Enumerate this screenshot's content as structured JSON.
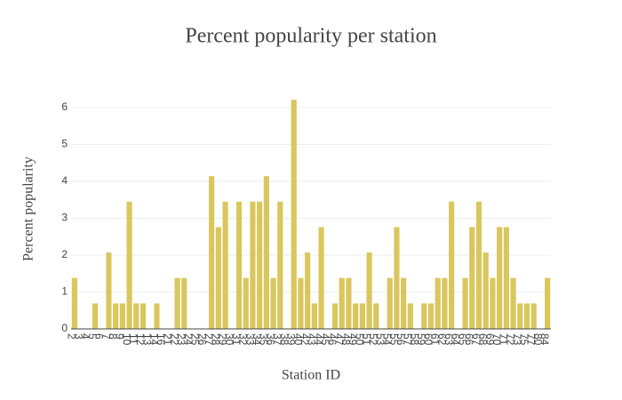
{
  "chart_data": {
    "type": "bar",
    "title": "Percent popularity per station",
    "x_label": "Station ID",
    "y_label": "Percent popularity",
    "categories": [
      "2",
      "3",
      "4",
      "5",
      "6",
      "7",
      "8",
      "9",
      "10",
      "11",
      "12",
      "13",
      "14",
      "16",
      "21",
      "22",
      "23",
      "24",
      "25",
      "26",
      "27",
      "28",
      "29",
      "30",
      "31",
      "32",
      "33",
      "34",
      "35",
      "36",
      "37",
      "38",
      "39",
      "40",
      "42",
      "43",
      "44",
      "45",
      "46",
      "47",
      "48",
      "49",
      "50",
      "51",
      "52",
      "53",
      "54",
      "55",
      "56",
      "57",
      "58",
      "59",
      "60",
      "61",
      "62",
      "63",
      "64",
      "65",
      "66",
      "67",
      "68",
      "69",
      "70",
      "71",
      "72",
      "73",
      "75",
      "77",
      "80",
      "84"
    ],
    "values": [
      1.38,
      0,
      0,
      0.69,
      0,
      2.07,
      0.69,
      0.69,
      3.45,
      0.69,
      0.69,
      0,
      0.69,
      0,
      0,
      1.38,
      1.38,
      0,
      0,
      0,
      4.14,
      2.76,
      3.45,
      0,
      3.45,
      1.38,
      3.45,
      3.45,
      4.14,
      1.38,
      3.45,
      0,
      6.21,
      1.38,
      2.07,
      0.69,
      2.76,
      0,
      0.69,
      1.38,
      1.38,
      0.69,
      0.69,
      2.07,
      0.69,
      0,
      1.38,
      2.76,
      1.38,
      0.69,
      0,
      0.69,
      0.69,
      1.38,
      1.38,
      3.45,
      0,
      1.38,
      2.76,
      3.45,
      2.07,
      1.38,
      2.76,
      2.76,
      1.38,
      0.69,
      0.69,
      0.69,
      0,
      1.38
    ],
    "color": "#d9c75e",
    "ylim": [
      0,
      7
    ],
    "yticks": [
      0,
      1,
      2,
      3,
      4,
      5,
      6
    ],
    "grid": true
  }
}
